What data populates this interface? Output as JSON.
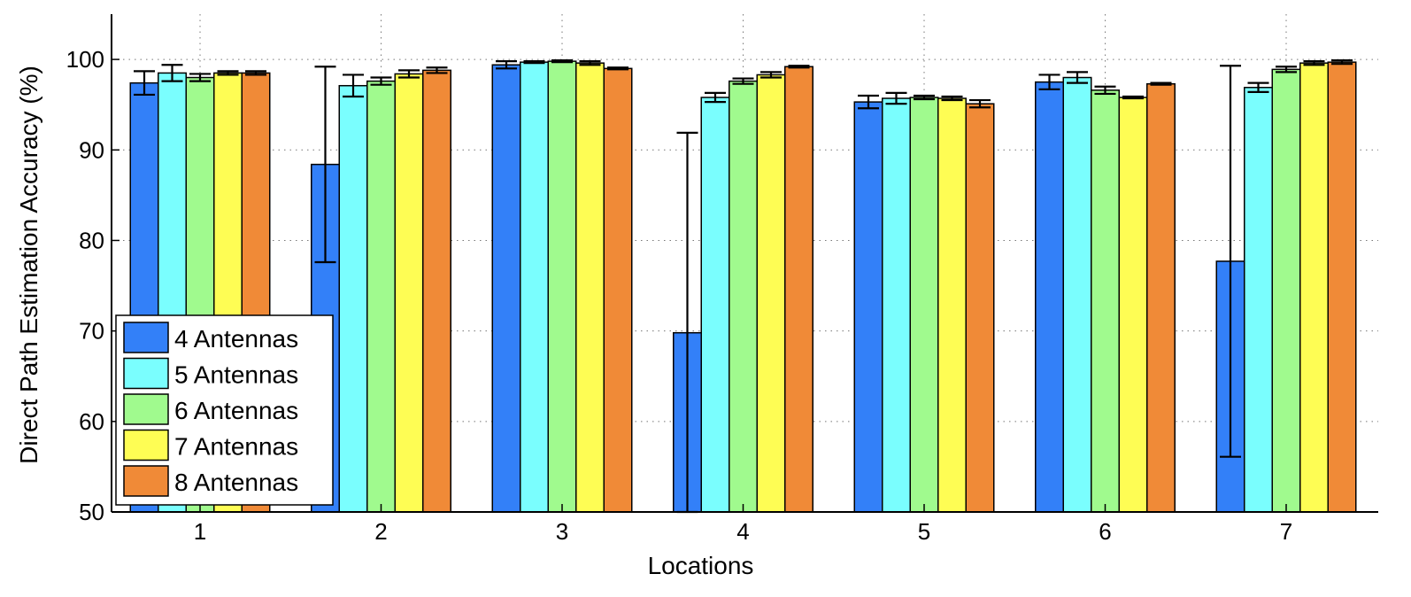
{
  "chart_data": {
    "type": "bar",
    "title": "",
    "xlabel": "Locations",
    "ylabel": "Direct Path Estimation Accuracy (%)",
    "ylim": [
      50,
      105
    ],
    "yticks": [
      50,
      60,
      70,
      80,
      90,
      100
    ],
    "grid": true,
    "legend_position": "bottom-left",
    "categories": [
      "1",
      "2",
      "3",
      "4",
      "5",
      "6",
      "7"
    ],
    "series": [
      {
        "name": "4 Antennas",
        "color": "#3380F8",
        "values": [
          97.4,
          88.4,
          99.4,
          69.8,
          95.3,
          97.5,
          77.7
        ],
        "errors": [
          1.3,
          10.8,
          0.4,
          22.1,
          0.7,
          0.8,
          21.6
        ]
      },
      {
        "name": "5 Antennas",
        "color": "#7AFEFE",
        "values": [
          98.5,
          97.1,
          99.7,
          95.8,
          95.7,
          98.0,
          96.9
        ],
        "errors": [
          0.9,
          1.2,
          0.1,
          0.5,
          0.6,
          0.6,
          0.5
        ]
      },
      {
        "name": "6 Antennas",
        "color": "#A0FA8E",
        "values": [
          98.0,
          97.6,
          99.8,
          97.6,
          95.8,
          96.6,
          98.9
        ],
        "errors": [
          0.4,
          0.4,
          0.1,
          0.3,
          0.2,
          0.4,
          0.3
        ]
      },
      {
        "name": "7 Antennas",
        "color": "#FEFD54",
        "values": [
          98.5,
          98.4,
          99.6,
          98.3,
          95.7,
          95.8,
          99.6
        ],
        "errors": [
          0.2,
          0.4,
          0.2,
          0.3,
          0.2,
          0.1,
          0.2
        ]
      },
      {
        "name": "8 Antennas",
        "color": "#F08A37",
        "values": [
          98.5,
          98.8,
          99.0,
          99.2,
          95.1,
          97.3,
          99.7
        ],
        "errors": [
          0.2,
          0.3,
          0.1,
          0.1,
          0.4,
          0.1,
          0.2
        ]
      }
    ]
  }
}
